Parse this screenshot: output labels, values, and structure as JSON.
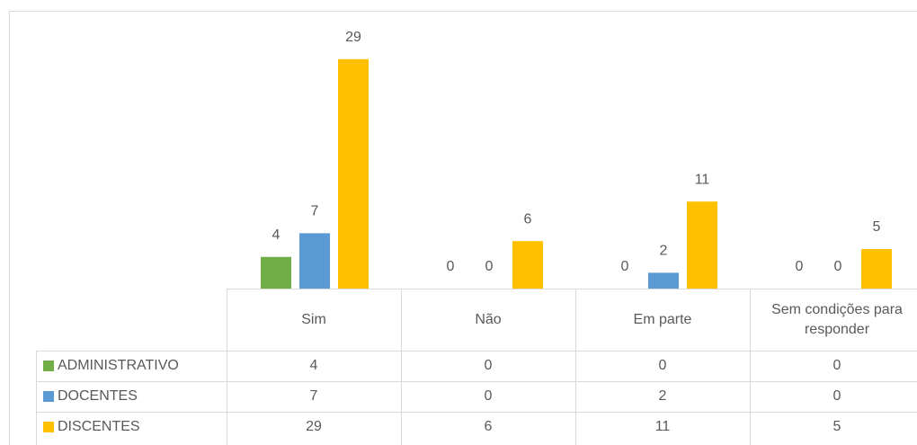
{
  "chart_data": {
    "type": "bar",
    "categories": [
      "Sim",
      "Não",
      "Em parte",
      "Sem condições para responder"
    ],
    "series": [
      {
        "name": "ADMINISTRATIVO",
        "color": "#70ad47",
        "values": [
          4,
          0,
          0,
          0
        ]
      },
      {
        "name": "DOCENTES",
        "color": "#5b9bd5",
        "values": [
          7,
          0,
          2,
          0
        ]
      },
      {
        "name": "DISCENTES",
        "color": "#ffc000",
        "values": [
          29,
          6,
          11,
          5
        ]
      }
    ],
    "ylim": [
      0,
      30
    ]
  }
}
